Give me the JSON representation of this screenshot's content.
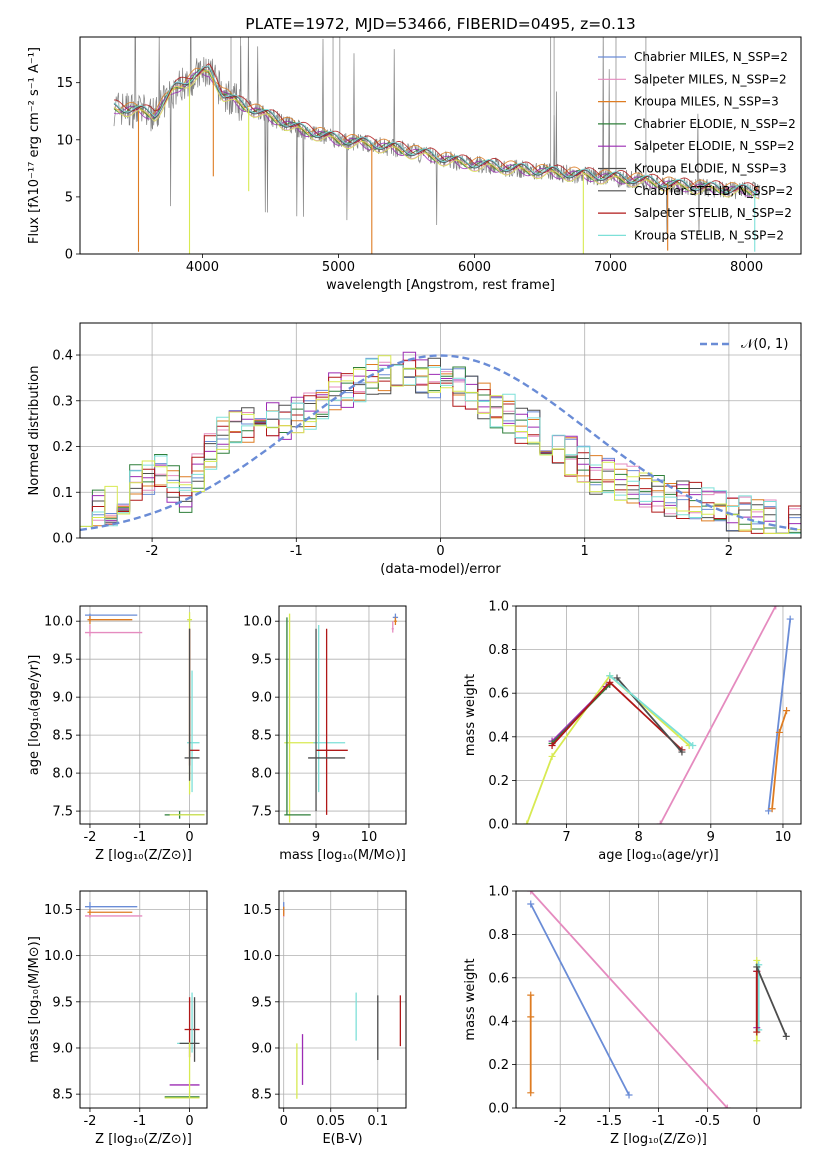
{
  "colors": {
    "c_blue": "#6a8cd6",
    "c_pink": "#e58bbf",
    "c_orange": "#de7c22",
    "c_green": "#2f7f3a",
    "c_purple": "#9c2bb4",
    "c_gray": "#4d4d4d",
    "c_red": "#b01818",
    "c_cyan": "#7de0d8",
    "c_lime": "#d8ea52",
    "c_data": "#808080"
  },
  "chart_data": [
    {
      "id": "spectrum",
      "type": "line",
      "title": "PLATE=1972, MJD=53466, FIBERID=0495, z=0.13",
      "xlabel": "wavelength [Angstrom, rest frame]",
      "ylabel": "Flux [fλ10⁻¹⁷ erg cm⁻² s⁻¹ A⁻¹]",
      "xlim": [
        3100,
        8400
      ],
      "ylim": [
        0,
        19
      ],
      "xticks": [
        4000,
        5000,
        6000,
        7000,
        8000
      ],
      "yticks": [
        0,
        5,
        10,
        15
      ],
      "grid": false,
      "legend_position": "top-right",
      "legend": [
        {
          "label": "Chabrier MILES, N_SSP=2",
          "color": "c_blue"
        },
        {
          "label": "Salpeter MILES, N_SSP=2",
          "color": "c_pink"
        },
        {
          "label": "Kroupa MILES, N_SSP=3",
          "color": "c_orange"
        },
        {
          "label": "Chabrier ELODIE, N_SSP=2",
          "color": "c_green"
        },
        {
          "label": "Salpeter ELODIE, N_SSP=2",
          "color": "c_purple"
        },
        {
          "label": "Kroupa ELODIE, N_SSP=3",
          "color": "c_gray"
        },
        {
          "label": "Chabrier STELIB, N_SSP=2",
          "color": "c_gray"
        },
        {
          "label": "Salpeter STELIB, N_SSP=2",
          "color": "c_red"
        },
        {
          "label": "Kroupa STELIB, N_SSP=2",
          "color": "c_cyan"
        }
      ],
      "continuum": [
        [
          3350,
          12.8
        ],
        [
          3500,
          12.6
        ],
        [
          3650,
          12.2
        ],
        [
          3800,
          14.5
        ],
        [
          3950,
          15.6
        ],
        [
          4050,
          16.0
        ],
        [
          4150,
          14.0
        ],
        [
          4300,
          13.0
        ],
        [
          4500,
          12.0
        ],
        [
          4700,
          11.0
        ],
        [
          5000,
          10.0
        ],
        [
          5300,
          9.5
        ],
        [
          5600,
          8.8
        ],
        [
          5900,
          8.0
        ],
        [
          6200,
          7.6
        ],
        [
          6500,
          7.2
        ],
        [
          6800,
          6.9
        ],
        [
          7100,
          6.6
        ],
        [
          7500,
          6.0
        ],
        [
          7900,
          5.6
        ],
        [
          8100,
          5.5
        ]
      ],
      "model_offsets": {
        "c_blue": 0.1,
        "c_pink": -0.2,
        "c_orange": 0.25,
        "c_green": 0.0,
        "c_purple": -0.1,
        "c_gray": 0.05,
        "c_red": 0.3,
        "c_cyan": 0.15,
        "c_lime": -0.25
      },
      "spikes": [
        [
          3530,
          0.2,
          "c_orange"
        ],
        [
          3905,
          0,
          "c_lime"
        ],
        [
          4080,
          6.8,
          "c_orange"
        ],
        [
          4340,
          5.5,
          "c_lime"
        ],
        [
          5245,
          0,
          "c_orange"
        ],
        [
          6800,
          0,
          "c_lime"
        ],
        [
          7420,
          0.3,
          "c_orange"
        ],
        [
          8060,
          0.2,
          "c_cyan"
        ]
      ]
    },
    {
      "id": "residuals",
      "type": "line",
      "xlabel": "(data-model)/error",
      "ylabel": "Normed distribution",
      "xlim": [
        -2.5,
        2.5
      ],
      "ylim": [
        0,
        0.47
      ],
      "xticks": [
        -2,
        -1,
        0,
        1,
        2
      ],
      "yticks": [
        0.0,
        0.1,
        0.2,
        0.3,
        0.4
      ],
      "grid": true,
      "legend_position": "top-right",
      "legend": [
        {
          "label": "𝒩(0, 1)",
          "color": "c_blue",
          "dashed": true
        }
      ],
      "gaussian": {
        "mu": 0,
        "sigma": 1
      },
      "hist_base": [
        0.07,
        0.07,
        0.07,
        0.09,
        0.12,
        0.13,
        0.14,
        0.12,
        0.1,
        0.14,
        0.19,
        0.22,
        0.24,
        0.25,
        0.27,
        0.26,
        0.25,
        0.27,
        0.28,
        0.3,
        0.32,
        0.33,
        0.34,
        0.35,
        0.36,
        0.36,
        0.37,
        0.36,
        0.35,
        0.34,
        0.33,
        0.31,
        0.3,
        0.28,
        0.27,
        0.25,
        0.24,
        0.2,
        0.2,
        0.18,
        0.16,
        0.14,
        0.13,
        0.12,
        0.12,
        0.11,
        0.1,
        0.09,
        0.08,
        0.08,
        0.07,
        0.06,
        0.06,
        0.05,
        0.05,
        0.04,
        0.04,
        0.03
      ]
    },
    {
      "id": "age-vs-metallicity",
      "type": "scatter",
      "xlabel": "Z [log₁₀(Z/Z⊙)]",
      "ylabel": "age  [log₁₀(age/yr)]",
      "xlim": [
        -2.2,
        0.35
      ],
      "ylim": [
        7.33,
        10.2
      ],
      "xticks": [
        -2,
        -1,
        0
      ],
      "yticks": [
        7.5,
        8.0,
        8.5,
        9.0,
        9.5,
        10.0
      ],
      "grid": true,
      "points": [
        {
          "x": -2.0,
          "y": 10.08,
          "xerr": [
            0.1,
            0.95
          ],
          "yerr": [
            0.08,
            0.02
          ],
          "color": "c_blue"
        },
        {
          "x": -2.0,
          "y": 9.85,
          "xerr": [
            0.1,
            1.05
          ],
          "yerr": [
            0.05,
            0.1
          ],
          "color": "c_pink"
        },
        {
          "x": -2.0,
          "y": 10.02,
          "xerr": [
            0.05,
            0.85
          ],
          "yerr": [
            0.06,
            0.05
          ],
          "color": "c_orange"
        },
        {
          "x": 0.0,
          "y": 10.02,
          "xerr": [
            0.05,
            0.05
          ],
          "yerr": [
            2.3,
            0.1
          ],
          "color": "c_lime"
        },
        {
          "x": 0.05,
          "y": 8.4,
          "xerr": [
            0.1,
            0.15
          ],
          "yerr": [
            0.65,
            0.95
          ],
          "color": "c_cyan"
        },
        {
          "x": 0.0,
          "y": 8.3,
          "xerr": [
            0.0,
            0.2
          ],
          "yerr": [
            0.2,
            1.6
          ],
          "color": "c_red"
        },
        {
          "x": 0.0,
          "y": 8.2,
          "xerr": [
            0.1,
            0.2
          ],
          "yerr": [
            0.3,
            1.7
          ],
          "color": "c_gray"
        },
        {
          "x": -0.2,
          "y": 7.45,
          "xerr": [
            0.3,
            0.5
          ],
          "yerr": [
            0.05,
            0.05
          ],
          "color": "c_green"
        },
        {
          "x": -0.2,
          "y": 7.45,
          "xerr": [
            0.2,
            0.5
          ],
          "yerr": [
            0.0,
            0.0
          ],
          "color": "c_lime"
        }
      ]
    },
    {
      "id": "age-vs-mass",
      "type": "scatter",
      "xlabel": "mass [log₁₀(M/M⊙)]",
      "ylabel": "",
      "xlim": [
        8.3,
        10.7
      ],
      "ylim": [
        7.33,
        10.2
      ],
      "xticks": [
        9,
        10
      ],
      "yticks": [
        7.5,
        8.0,
        8.5,
        9.0,
        9.5,
        10.0
      ],
      "grid": true,
      "points": [
        {
          "x": 10.5,
          "y": 10.05,
          "xerr": [
            0.05,
            0.05
          ],
          "yerr": [
            0.03,
            0.05
          ],
          "color": "c_blue"
        },
        {
          "x": 10.45,
          "y": 9.9,
          "xerr": [
            0.02,
            0.02
          ],
          "yerr": [
            0.05,
            0.1
          ],
          "color": "c_pink"
        },
        {
          "x": 10.5,
          "y": 10.0,
          "xerr": [
            0.03,
            0.03
          ],
          "yerr": [
            0.05,
            0.05
          ],
          "color": "c_orange"
        },
        {
          "x": 8.5,
          "y": 8.4,
          "xerr": [
            0.1,
            0.5
          ],
          "yerr": [
            1.05,
            1.7
          ],
          "color": "c_lime"
        },
        {
          "x": 9.05,
          "y": 8.4,
          "xerr": [
            0.1,
            0.5
          ],
          "yerr": [
            0.65,
            1.55
          ],
          "color": "c_cyan"
        },
        {
          "x": 9.2,
          "y": 8.3,
          "xerr": [
            0.2,
            0.4
          ],
          "yerr": [
            0.85,
            1.6
          ],
          "color": "c_red"
        },
        {
          "x": 9.0,
          "y": 8.2,
          "xerr": [
            0.15,
            0.55
          ],
          "yerr": [
            0.7,
            1.7
          ],
          "color": "c_gray"
        },
        {
          "x": 8.45,
          "y": 7.45,
          "xerr": [
            0.05,
            0.45
          ],
          "yerr": [
            0.0,
            2.6
          ],
          "color": "c_green"
        }
      ]
    },
    {
      "id": "mass-weight-vs-age",
      "type": "line",
      "xlabel": "age  [log₁₀(age/yr)]",
      "ylabel": "mass weight",
      "xlim": [
        6.3,
        10.25
      ],
      "ylim": [
        0,
        1
      ],
      "xticks": [
        7,
        8,
        9,
        10
      ],
      "yticks": [
        0.0,
        0.2,
        0.4,
        0.6,
        0.8,
        1.0
      ],
      "grid": true,
      "series": [
        {
          "color": "c_pink",
          "x": [
            8.3,
            9.9
          ],
          "y": [
            0.0,
            1.0
          ]
        },
        {
          "color": "c_blue",
          "x": [
            9.8,
            10.1
          ],
          "y": [
            0.06,
            0.94
          ]
        },
        {
          "color": "c_orange",
          "x": [
            9.85,
            9.95,
            10.05
          ],
          "y": [
            0.07,
            0.42,
            0.52
          ]
        },
        {
          "color": "c_lime",
          "x": [
            6.45,
            6.8,
            7.6,
            8.7
          ],
          "y": [
            0.0,
            0.31,
            0.68,
            0.36
          ]
        },
        {
          "color": "c_purple",
          "x": [
            6.8,
            7.55
          ],
          "y": [
            0.38,
            0.63
          ]
        },
        {
          "color": "c_green",
          "x": [
            6.8,
            7.6
          ],
          "y": [
            0.37,
            0.64
          ]
        },
        {
          "color": "c_red",
          "x": [
            6.8,
            7.6,
            8.6
          ],
          "y": [
            0.36,
            0.65,
            0.34
          ]
        },
        {
          "color": "c_gray",
          "x": [
            7.7,
            8.6
          ],
          "y": [
            0.67,
            0.33
          ]
        },
        {
          "color": "c_cyan",
          "x": [
            7.6,
            8.75
          ],
          "y": [
            0.68,
            0.36
          ]
        }
      ]
    },
    {
      "id": "mass-vs-metallicity",
      "type": "scatter",
      "xlabel": "Z [log₁₀(Z/Z⊙)]",
      "ylabel": "mass [log₁₀(M/M⊙)]",
      "xlim": [
        -2.2,
        0.35
      ],
      "ylim": [
        8.35,
        10.7
      ],
      "xticks": [
        -2,
        -1,
        0
      ],
      "yticks": [
        8.5,
        9.0,
        9.5,
        10.0,
        10.5
      ],
      "grid": true,
      "points": [
        {
          "x": -2.0,
          "y": 10.53,
          "xerr": [
            0.1,
            0.95
          ],
          "yerr": [
            0.03,
            0.05
          ],
          "color": "c_blue"
        },
        {
          "x": -2.0,
          "y": 10.43,
          "xerr": [
            0.1,
            1.05
          ],
          "yerr": [
            0.02,
            0.02
          ],
          "color": "c_pink"
        },
        {
          "x": -2.0,
          "y": 10.47,
          "xerr": [
            0.05,
            0.85
          ],
          "yerr": [
            0.03,
            0.03
          ],
          "color": "c_orange"
        },
        {
          "x": 0.0,
          "y": 9.2,
          "xerr": [
            0.1,
            0.2
          ],
          "yerr": [
            0.3,
            0.35
          ],
          "color": "c_red"
        },
        {
          "x": 0.05,
          "y": 9.05,
          "xerr": [
            0.3,
            0.1
          ],
          "yerr": [
            0.1,
            0.55
          ],
          "color": "c_cyan"
        },
        {
          "x": 0.1,
          "y": 9.05,
          "xerr": [
            0.3,
            0.1
          ],
          "yerr": [
            0.2,
            0.5
          ],
          "color": "c_gray"
        },
        {
          "x": 0.0,
          "y": 8.6,
          "xerr": [
            0.4,
            0.2
          ],
          "yerr": [
            0.0,
            0.0
          ],
          "color": "c_purple"
        },
        {
          "x": 0.0,
          "y": 8.47,
          "xerr": [
            0.5,
            0.2
          ],
          "yerr": [
            0.0,
            0.0
          ],
          "color": "c_green"
        },
        {
          "x": 0.0,
          "y": 8.46,
          "xerr": [
            0.5,
            0.2
          ],
          "yerr": [
            0.0,
            0.6
          ],
          "color": "c_lime"
        }
      ]
    },
    {
      "id": "mass-vs-extinction",
      "type": "scatter",
      "xlabel": "E(B-V)",
      "ylabel": "",
      "xlim": [
        -0.005,
        0.13
      ],
      "ylim": [
        8.35,
        10.7
      ],
      "xticks": [
        0.0,
        0.05,
        0.1
      ],
      "yticks": [
        8.5,
        9.0,
        9.5,
        10.0,
        10.5
      ],
      "grid": true,
      "points": [
        {
          "x": 0.0,
          "y": 10.5,
          "xerr": [
            0,
            0
          ],
          "yerr": [
            0.05,
            0.08
          ],
          "color": "c_blue"
        },
        {
          "x": 0.0,
          "y": 10.45,
          "xerr": [
            0,
            0
          ],
          "yerr": [
            0.03,
            0.03
          ],
          "color": "c_pink"
        },
        {
          "x": 0.0,
          "y": 10.48,
          "xerr": [
            0,
            0
          ],
          "yerr": [
            0.05,
            0.05
          ],
          "color": "c_orange"
        },
        {
          "x": 0.014,
          "y": 8.85,
          "xerr": [
            0,
            0
          ],
          "yerr": [
            0.4,
            0.2
          ],
          "color": "c_lime"
        },
        {
          "x": 0.02,
          "y": 8.85,
          "xerr": [
            0,
            0
          ],
          "yerr": [
            0.25,
            0.3
          ],
          "color": "c_purple"
        },
        {
          "x": 0.077,
          "y": 9.33,
          "xerr": [
            0,
            0
          ],
          "yerr": [
            0.25,
            0.27
          ],
          "color": "c_cyan"
        },
        {
          "x": 0.1,
          "y": 9.22,
          "xerr": [
            0,
            0
          ],
          "yerr": [
            0.35,
            0.35
          ],
          "color": "c_gray"
        },
        {
          "x": 0.124,
          "y": 9.3,
          "xerr": [
            0,
            0
          ],
          "yerr": [
            0.28,
            0.27
          ],
          "color": "c_red"
        }
      ]
    },
    {
      "id": "mass-weight-vs-metallicity",
      "type": "line",
      "xlabel": "Z [log₁₀(Z/Z⊙)]",
      "ylabel": "mass weight",
      "xlim": [
        -2.45,
        0.45
      ],
      "ylim": [
        0,
        1
      ],
      "xticks": [
        -2.0,
        -1.5,
        -1.0,
        -0.5,
        0.0
      ],
      "yticks": [
        0.0,
        0.2,
        0.4,
        0.6,
        0.8,
        1.0
      ],
      "grid": true,
      "series": [
        {
          "color": "c_blue",
          "x": [
            -2.3,
            -1.3
          ],
          "y": [
            0.94,
            0.06
          ]
        },
        {
          "color": "c_pink",
          "x": [
            -2.3,
            -0.3
          ],
          "y": [
            1.0,
            0.0
          ]
        },
        {
          "color": "c_orange",
          "x": [
            -2.3,
            -2.3,
            -2.3
          ],
          "y": [
            0.07,
            0.42,
            0.52
          ]
        },
        {
          "color": "c_lime",
          "x": [
            0.0,
            0.0
          ],
          "y": [
            0.31,
            0.68
          ]
        },
        {
          "color": "c_cyan",
          "x": [
            0.02,
            0.02
          ],
          "y": [
            0.36,
            0.66
          ]
        },
        {
          "color": "c_purple",
          "x": [
            0.0,
            0.0
          ],
          "y": [
            0.37,
            0.63
          ]
        },
        {
          "color": "c_red",
          "x": [
            0.0,
            0.0
          ],
          "y": [
            0.35,
            0.63
          ]
        },
        {
          "color": "c_gray",
          "x": [
            0.0,
            0.3
          ],
          "y": [
            0.65,
            0.33
          ]
        }
      ]
    }
  ]
}
